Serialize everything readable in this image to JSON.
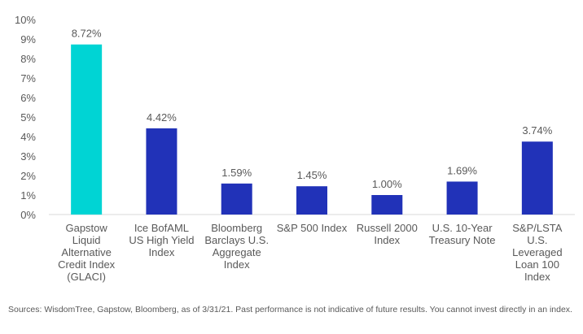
{
  "chart_data": {
    "type": "bar",
    "categories": [
      [
        "Gapstow",
        "Liquid",
        "Alternative",
        "Credit Index",
        "(GLACI)"
      ],
      [
        "Ice BofAML",
        "US High Yield",
        "Index"
      ],
      [
        "Bloomberg",
        "Barclays U.S.",
        "Aggregate",
        "Index"
      ],
      [
        "S&P 500 Index"
      ],
      [
        "Russell 2000",
        "Index"
      ],
      [
        "U.S. 10-Year",
        "Treasury Note"
      ],
      [
        "S&P/LSTA",
        "U.S.",
        "Leveraged",
        "Loan 100",
        "Index"
      ]
    ],
    "values": [
      8.72,
      4.42,
      1.59,
      1.45,
      1.0,
      1.69,
      3.74
    ],
    "data_labels": [
      "8.72%",
      "4.42%",
      "1.59%",
      "1.45%",
      "1.00%",
      "1.69%",
      "3.74%"
    ],
    "bar_colors": [
      "#00d4d4",
      "#2132b8",
      "#2132b8",
      "#2132b8",
      "#2132b8",
      "#2132b8",
      "#2132b8"
    ],
    "yticks": [
      "0%",
      "1%",
      "2%",
      "3%",
      "4%",
      "5%",
      "6%",
      "7%",
      "8%",
      "9%",
      "10%"
    ],
    "ylim": [
      0,
      10
    ],
    "grid": false,
    "title": "",
    "xlabel": "",
    "ylabel": ""
  },
  "footnote": "Sources: WisdomTree, Gapstow, Bloomberg, as of 3/31/21. Past performance is not indicative of future results. You cannot invest directly in an index."
}
